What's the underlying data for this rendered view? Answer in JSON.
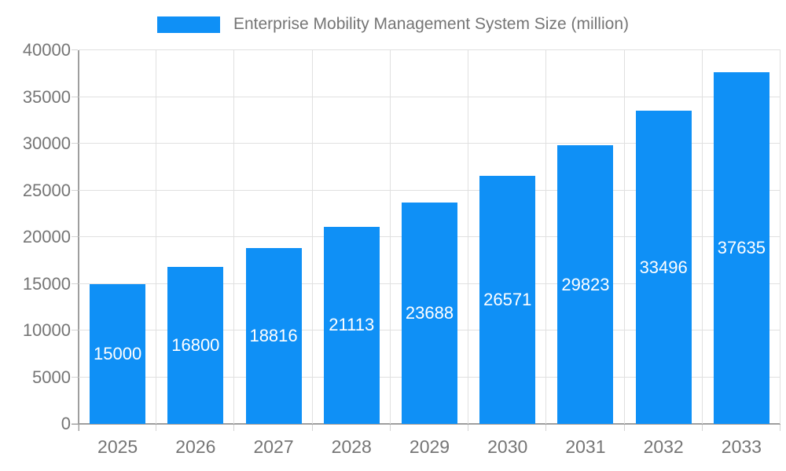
{
  "chart_data": {
    "type": "bar",
    "legend": "Enterprise Mobility Management System Size (million)",
    "categories": [
      "2025",
      "2026",
      "2027",
      "2028",
      "2029",
      "2030",
      "2031",
      "2032",
      "2033"
    ],
    "values": [
      15000,
      16800,
      18816,
      21113,
      23688,
      26571,
      29823,
      33496,
      37635
    ],
    "value_labels": [
      "15000",
      "16800",
      "18816",
      "21113",
      "23688",
      "26571",
      "29823",
      "33496",
      "37635"
    ],
    "ytick_labels": [
      "0",
      "5000",
      "10000",
      "15000",
      "20000",
      "25000",
      "30000",
      "35000",
      "40000"
    ],
    "ylim": [
      0,
      40000
    ],
    "ytick_step": 5000,
    "grid": true,
    "legend_position": "top",
    "value_label_position": "inside-center"
  },
  "colors": {
    "bar": "#0f90f6",
    "grid": "#e0e0e0",
    "axis": "#9e9e9e",
    "tick": "#d4d4d4",
    "text": "#757575",
    "value_label": "#ffffff",
    "background": "#ffffff"
  }
}
